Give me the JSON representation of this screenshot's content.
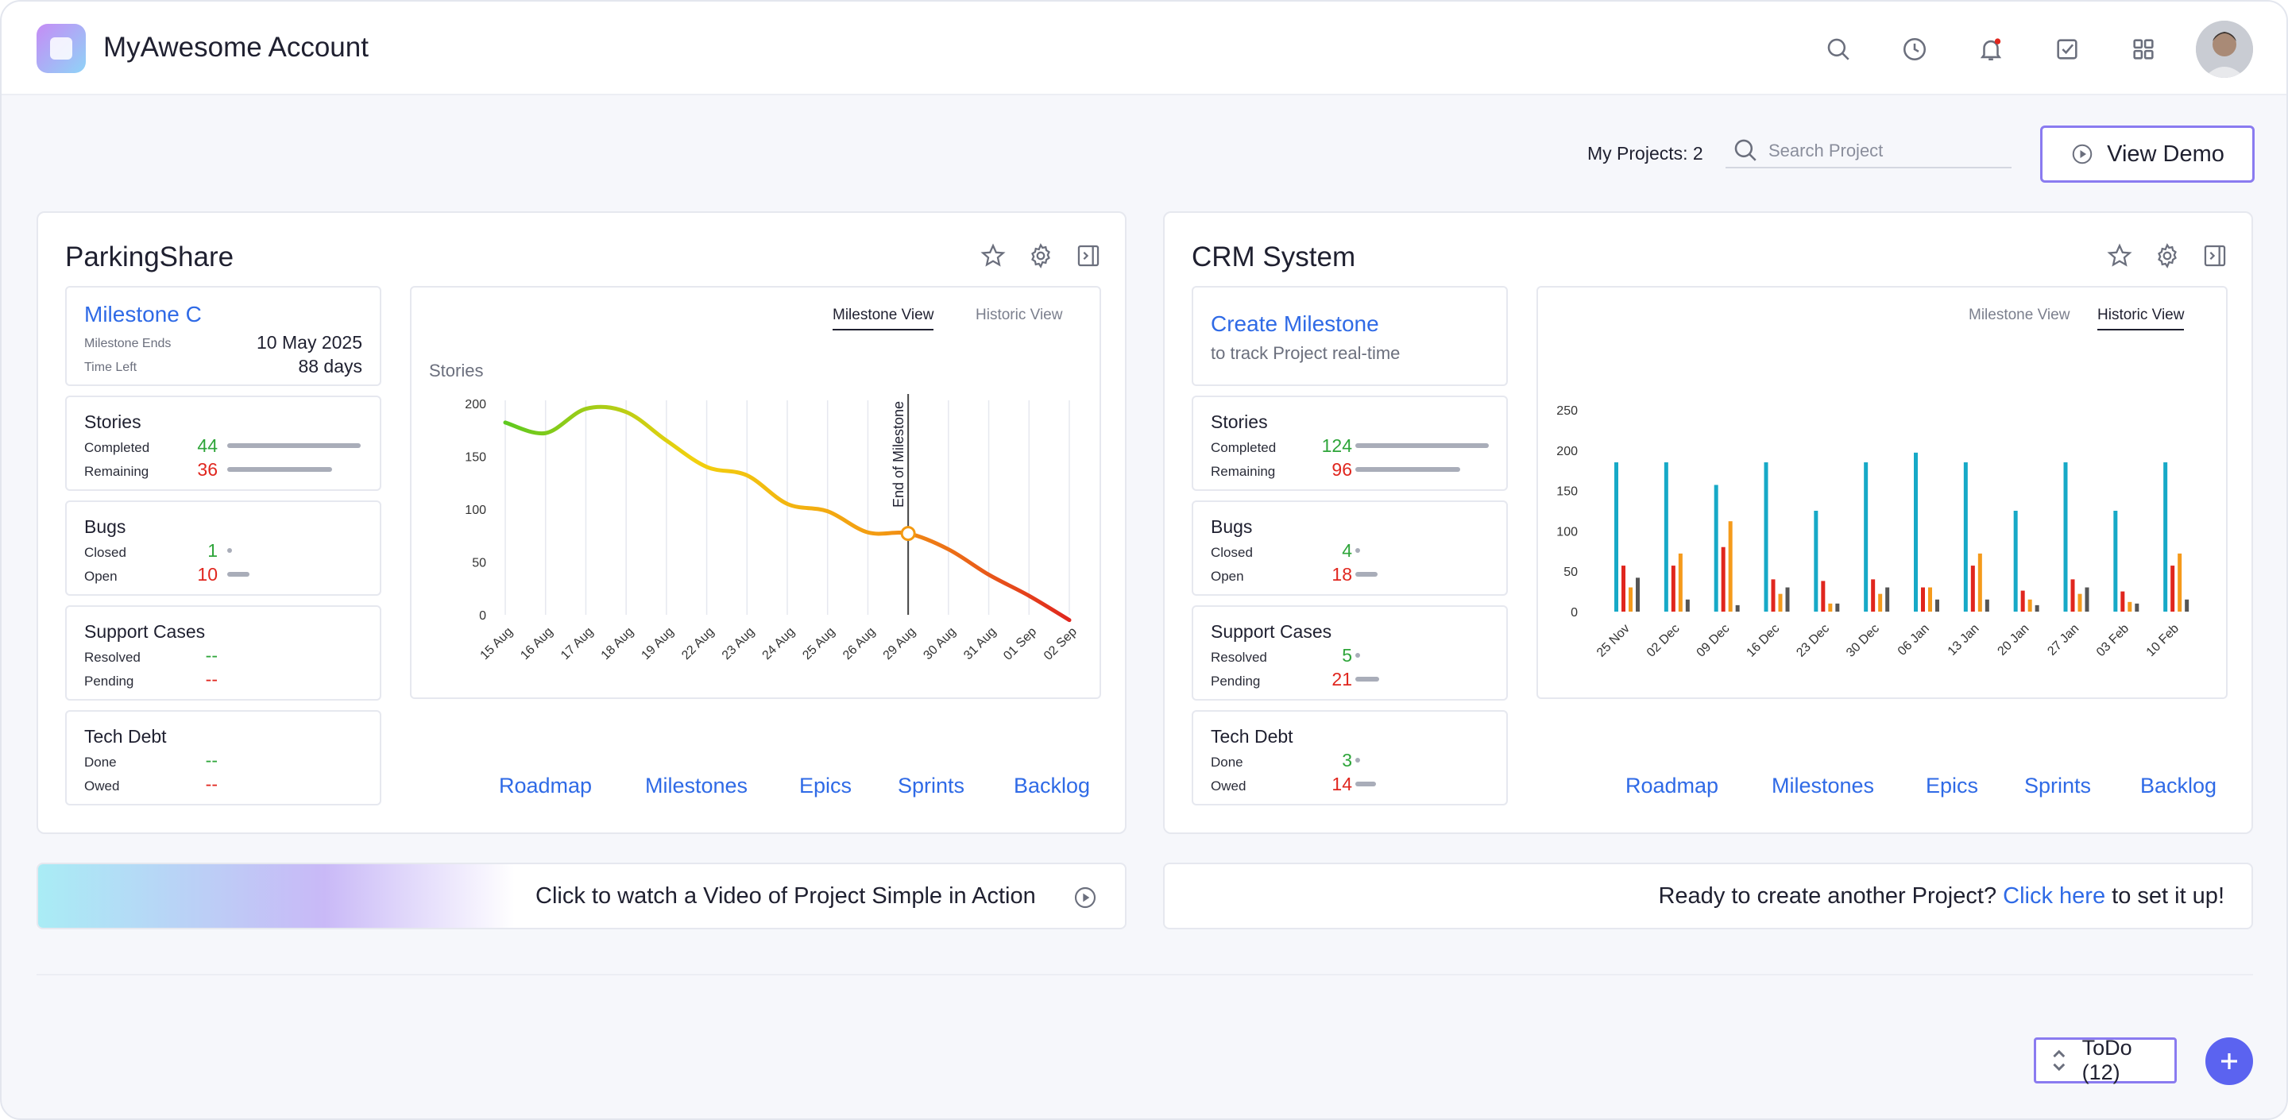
{
  "app": {
    "title": "MyAwesome Account"
  },
  "toolbar": {
    "projects_label": "My Projects: 2",
    "search_placeholder": "Search Project",
    "view_demo_label": "View Demo"
  },
  "colors": {
    "accent": "#2f6ae6",
    "green": "#2ea53a",
    "red": "#e0261e",
    "teal": "#17a9c7",
    "orange": "#f59a1b",
    "gray": "#555555",
    "outline": "#8a7bf0"
  },
  "projects": [
    {
      "name": "ParkingShare",
      "milestone": {
        "name": "Milestone C",
        "ends_label": "Milestone Ends",
        "ends_value": "10 May 2025",
        "left_label": "Time Left",
        "left_value": "88 days"
      },
      "stories": {
        "title": "Stories",
        "completed_label": "Completed",
        "completed": "44",
        "remaining_label": "Remaining",
        "remaining": "36",
        "completed_frac": 0.55,
        "remaining_frac": 0.45
      },
      "bugs": {
        "title": "Bugs",
        "closed_label": "Closed",
        "closed": "1",
        "open_label": "Open",
        "open": "10"
      },
      "support": {
        "title": "Support Cases",
        "resolved_label": "Resolved",
        "resolved": "--",
        "pending_label": "Pending",
        "pending": "--"
      },
      "debt": {
        "title": "Tech Debt",
        "done_label": "Done",
        "done": "--",
        "owed_label": "Owed",
        "owed": "--"
      },
      "tabs": {
        "milestone": "Milestone View",
        "historic": "Historic View",
        "active": "milestone"
      },
      "links": [
        "Roadmap",
        "Milestones",
        "Epics",
        "Sprints",
        "Backlog"
      ]
    },
    {
      "name": "CRM System",
      "milestone": {
        "name": "Create Milestone",
        "subtitle": "to track Project real-time"
      },
      "stories": {
        "title": "Stories",
        "completed_label": "Completed",
        "completed": "124",
        "remaining_label": "Remaining",
        "remaining": "96",
        "completed_frac": 0.56,
        "remaining_frac": 0.44
      },
      "bugs": {
        "title": "Bugs",
        "closed_label": "Closed",
        "closed": "4",
        "open_label": "Open",
        "open": "18"
      },
      "support": {
        "title": "Support Cases",
        "resolved_label": "Resolved",
        "resolved": "5",
        "pending_label": "Pending",
        "pending": "21"
      },
      "debt": {
        "title": "Tech Debt",
        "done_label": "Done",
        "done": "3",
        "owed_label": "Owed",
        "owed": "14"
      },
      "tabs": {
        "milestone": "Milestone View",
        "historic": "Historic View",
        "active": "historic"
      },
      "links": [
        "Roadmap",
        "Milestones",
        "Epics",
        "Sprints",
        "Backlog"
      ]
    }
  ],
  "banners": {
    "video_text": "Click to watch a Video of Project Simple in Action",
    "create_prefix": "Ready to create another Project?",
    "create_link": "Click here",
    "create_suffix": "to set it up!"
  },
  "todo": {
    "label": "ToDo (12)"
  },
  "chart_data": [
    {
      "type": "line",
      "ylabel": "Stories",
      "ylim": [
        0,
        200
      ],
      "yticks": [
        0,
        50,
        100,
        150,
        200
      ],
      "x": [
        "15 Aug",
        "16 Aug",
        "17 Aug",
        "18 Aug",
        "19 Aug",
        "22 Aug",
        "23 Aug",
        "24 Aug",
        "25 Aug",
        "26 Aug",
        "29 Aug",
        "30 Aug",
        "31 Aug",
        "01 Sep",
        "02 Sep"
      ],
      "values": [
        182,
        172,
        195,
        192,
        165,
        140,
        132,
        105,
        98,
        78,
        77,
        62,
        38,
        18,
        -5
      ],
      "annotation": {
        "label": "End of Milestone",
        "x": "29 Aug",
        "y": 77
      },
      "gradient": [
        "#5ec91f",
        "#f2d10e",
        "#f39a12",
        "#e0261e"
      ]
    },
    {
      "type": "bar",
      "ylim": [
        0,
        250
      ],
      "yticks": [
        0,
        50,
        100,
        150,
        200,
        250
      ],
      "categories": [
        "25 Nov",
        "02 Dec",
        "09 Dec",
        "16 Dec",
        "23 Dec",
        "30 Dec",
        "06 Jan",
        "13 Jan",
        "20 Jan",
        "27 Jan",
        "03 Feb",
        "10 Feb"
      ],
      "series": [
        {
          "color": "#17a9c7",
          "values": [
            185,
            185,
            157,
            185,
            125,
            185,
            197,
            185,
            125,
            185,
            125,
            185
          ]
        },
        {
          "color": "#e0261e",
          "values": [
            57,
            57,
            80,
            40,
            38,
            40,
            30,
            57,
            26,
            40,
            25,
            57
          ]
        },
        {
          "color": "#f59a1b",
          "values": [
            30,
            72,
            112,
            22,
            10,
            22,
            30,
            72,
            15,
            22,
            12,
            72
          ]
        },
        {
          "color": "#555555",
          "values": [
            42,
            15,
            8,
            30,
            10,
            30,
            15,
            15,
            8,
            30,
            10,
            15
          ]
        }
      ]
    }
  ]
}
